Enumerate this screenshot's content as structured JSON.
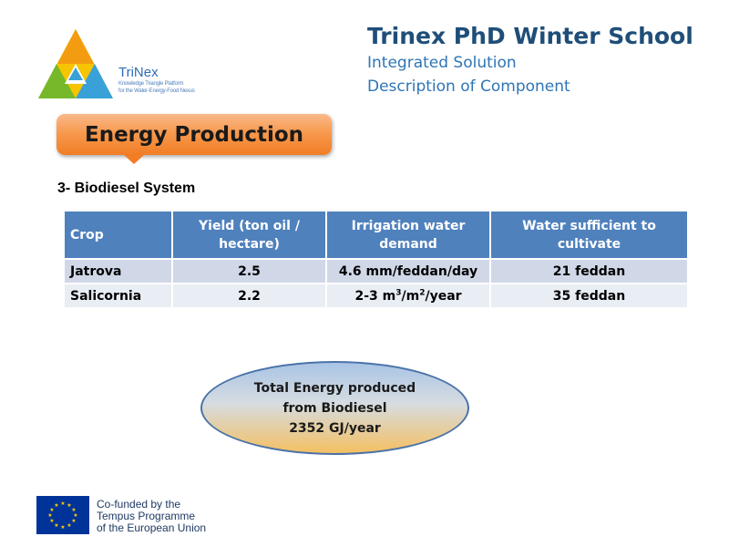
{
  "logo": {
    "name": "TriNex",
    "tagline_line1": "Knowledge Triangle Platform",
    "tagline_line2": "for the Water-Energy-Food Nexus"
  },
  "header": {
    "title": "Trinex PhD Winter School",
    "subtitle1": "Integrated Solution",
    "subtitle2": "Description of Component"
  },
  "callout": {
    "label": "Energy Production"
  },
  "section": {
    "heading": "3- Biodiesel System"
  },
  "table": {
    "headers": [
      [
        "Crop"
      ],
      [
        "Yield (ton oil /",
        "hectare)"
      ],
      [
        "Irrigation water",
        "demand"
      ],
      [
        "Water sufficient to",
        "cultivate"
      ]
    ],
    "rows": [
      {
        "crop": "Jatrova",
        "yield": "2.5",
        "irrigation": "4.6 mm/feddan/day",
        "water": "21 feddan"
      },
      {
        "crop": "Salicornia",
        "yield": "2.2",
        "irrigation": {
          "pre": "2-3 m",
          "sup1": "3",
          "mid": "/m",
          "sup2": "2",
          "post": "/year"
        },
        "water": "35 feddan"
      }
    ]
  },
  "summary": {
    "line1": "Total Energy produced",
    "line2": "from Biodiesel",
    "line3": "2352 GJ/year"
  },
  "footer": {
    "line1": "Co-funded by the",
    "line2": "Tempus Programme",
    "line3": "of the European Union"
  },
  "colors": {
    "header_title": "#1f4e79",
    "header_sub": "#2e75b6",
    "callout": "#f79a4f",
    "table_header": "#4f81bd",
    "row_odd": "#d0d8e8",
    "row_even": "#e9edf4",
    "eu_blue": "#003399",
    "eu_yellow": "#ffcc00"
  }
}
